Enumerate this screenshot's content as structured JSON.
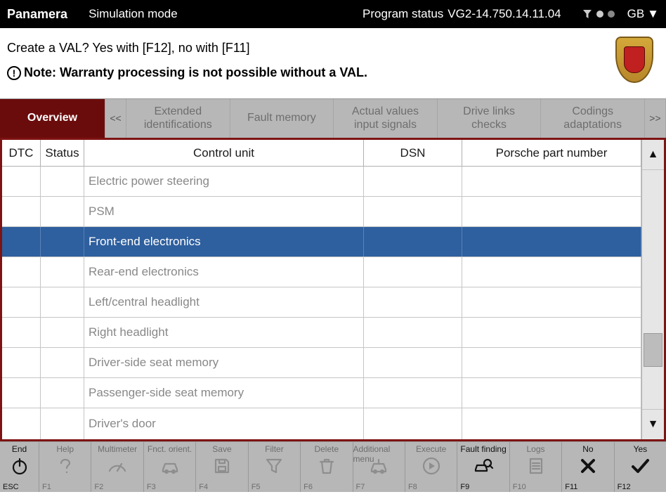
{
  "topbar": {
    "vehicle": "Panamera",
    "mode": "Simulation mode",
    "program_status_label": "Program status",
    "program_status_value": "VG2-14.750.14.11.04",
    "language": "GB"
  },
  "prompt": {
    "line1": "Create a VAL? Yes with [F12], no with [F11]",
    "line2": "Note: Warranty processing is not possible without a VAL."
  },
  "tabs": {
    "prev": "<<",
    "items": [
      {
        "label": "Overview",
        "active": true
      },
      {
        "label": "Extended identifications",
        "active": false
      },
      {
        "label": "Fault memory",
        "active": false
      },
      {
        "label": "Actual values input signals",
        "active": false
      },
      {
        "label": "Drive links checks",
        "active": false
      },
      {
        "label": "Codings adaptations",
        "active": false
      }
    ],
    "next": ">>"
  },
  "table": {
    "headers": {
      "dtc": "DTC",
      "status": "Status",
      "control_unit": "Control unit",
      "dsn": "DSN",
      "part_number": "Porsche part number"
    },
    "rows": [
      {
        "dtc": "",
        "status": "",
        "cu": "Electric power steering",
        "dsn": "",
        "pn": "",
        "selected": false
      },
      {
        "dtc": "",
        "status": "",
        "cu": "PSM",
        "dsn": "",
        "pn": "",
        "selected": false
      },
      {
        "dtc": "",
        "status": "",
        "cu": "Front-end electronics",
        "dsn": "",
        "pn": "",
        "selected": true
      },
      {
        "dtc": "",
        "status": "",
        "cu": "Rear-end electronics",
        "dsn": "",
        "pn": "",
        "selected": false
      },
      {
        "dtc": "",
        "status": "",
        "cu": "Left/central headlight",
        "dsn": "",
        "pn": "",
        "selected": false
      },
      {
        "dtc": "",
        "status": "",
        "cu": "Right headlight",
        "dsn": "",
        "pn": "",
        "selected": false
      },
      {
        "dtc": "",
        "status": "",
        "cu": "Driver-side seat memory",
        "dsn": "",
        "pn": "",
        "selected": false
      },
      {
        "dtc": "",
        "status": "",
        "cu": "Passenger-side seat memory",
        "dsn": "",
        "pn": "",
        "selected": false
      },
      {
        "dtc": "",
        "status": "",
        "cu": "Driver's door",
        "dsn": "",
        "pn": "",
        "selected": false
      }
    ],
    "colors": {
      "border": "#7e1313",
      "selected_bg": "#2e5f9e",
      "text_dim": "#888888"
    }
  },
  "fkeys": [
    {
      "key": "ESC",
      "label": "End",
      "icon": "power",
      "active": true
    },
    {
      "key": "F1",
      "label": "Help",
      "icon": "question",
      "active": false
    },
    {
      "key": "F2",
      "label": "Multimeter",
      "icon": "meter",
      "active": false
    },
    {
      "key": "F3",
      "label": "Fnct. orient.",
      "icon": "car",
      "active": false
    },
    {
      "key": "F4",
      "label": "Save",
      "icon": "disk",
      "active": false
    },
    {
      "key": "F5",
      "label": "Filter",
      "icon": "funnel",
      "active": false
    },
    {
      "key": "F6",
      "label": "Delete",
      "icon": "trash",
      "active": false
    },
    {
      "key": "F7",
      "label": "Additional menu",
      "icon": "car2",
      "active": false
    },
    {
      "key": "F8",
      "label": "Execute",
      "icon": "play",
      "active": false
    },
    {
      "key": "F9",
      "label": "Fault finding",
      "icon": "search-car",
      "active": true
    },
    {
      "key": "F10",
      "label": "Logs",
      "icon": "logs",
      "active": false
    },
    {
      "key": "F11",
      "label": "No",
      "icon": "cross",
      "active": true
    },
    {
      "key": "F12",
      "label": "Yes",
      "icon": "check",
      "active": true
    }
  ]
}
